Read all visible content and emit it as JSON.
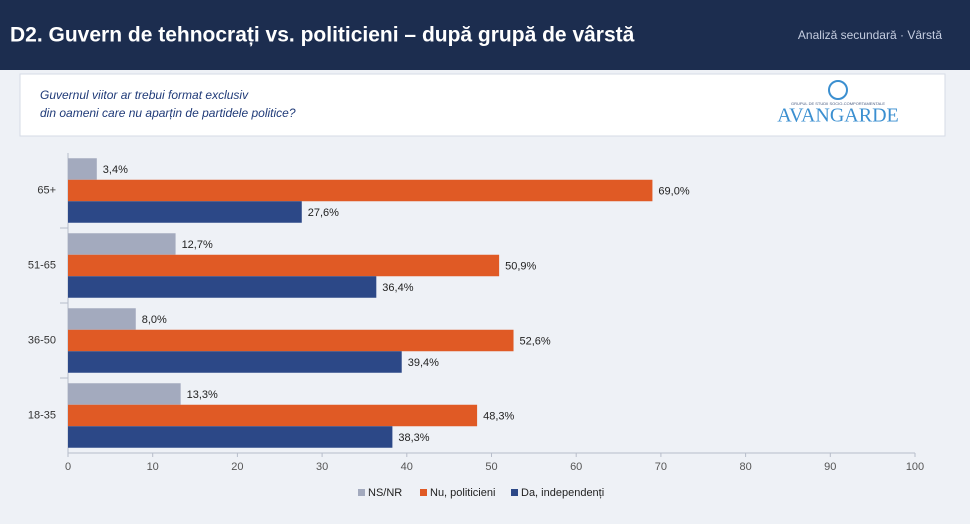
{
  "header": {
    "title": "D2. Guvern de tehnocrați vs. politicieni – după grupă de vârstă",
    "subtitle": "Analiză secundară · Vârstă"
  },
  "question": {
    "lines": [
      "Guvernul viitor ar trebui format exclusiv",
      "din oameni care nu aparțin de partidele politice?"
    ]
  },
  "logo": {
    "tagline": "GRUPUL DE STUDII SOCIO-COMPORTAMENTALE",
    "name": "AVANGARDE"
  },
  "chart_data": {
    "type": "hbar",
    "categories": [
      "65+",
      "51-65",
      "36-50",
      "18-35"
    ],
    "series": [
      {
        "name": "NS/NR",
        "color": "#a3aabe",
        "values": [
          3.4,
          12.7,
          8.0,
          13.3
        ],
        "value_labels": [
          "3,4%",
          "12,7%",
          "8,0%",
          "13,3%"
        ]
      },
      {
        "name": "Nu, politicieni",
        "color": "#e05a25",
        "values": [
          69.0,
          50.9,
          52.6,
          48.3
        ],
        "value_labels": [
          "69,0%",
          "50,9%",
          "52,6%",
          "48,3%"
        ]
      },
      {
        "name": "Da, independenți",
        "color": "#2c4887",
        "values": [
          27.6,
          36.4,
          39.4,
          38.3
        ],
        "value_labels": [
          "27,6%",
          "36,4%",
          "39,4%",
          "38,3%"
        ]
      }
    ],
    "xlim": [
      0,
      100
    ],
    "xticks": [
      0,
      10,
      20,
      30,
      40,
      50,
      60,
      70,
      80,
      90,
      100
    ],
    "legend": "bottom"
  }
}
